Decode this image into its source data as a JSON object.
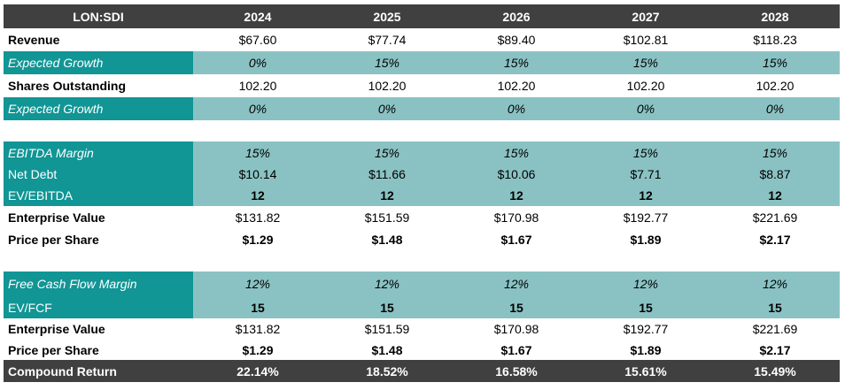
{
  "header": {
    "ticker": "LON:SDI",
    "years": [
      "2024",
      "2025",
      "2026",
      "2027",
      "2028"
    ]
  },
  "rows": {
    "revenue": {
      "label": "Revenue",
      "values": [
        "$67.60",
        "$77.74",
        "$89.40",
        "$102.81",
        "$118.23"
      ]
    },
    "revenue_growth": {
      "label": "Expected Growth",
      "values": [
        "0%",
        "15%",
        "15%",
        "15%",
        "15%"
      ]
    },
    "shares": {
      "label": "Shares Outstanding",
      "values": [
        "102.20",
        "102.20",
        "102.20",
        "102.20",
        "102.20"
      ]
    },
    "shares_growth": {
      "label": "Expected Growth",
      "values": [
        "0%",
        "0%",
        "0%",
        "0%",
        "0%"
      ]
    },
    "ebitda_margin": {
      "label": "EBITDA Margin",
      "values": [
        "15%",
        "15%",
        "15%",
        "15%",
        "15%"
      ]
    },
    "net_debt": {
      "label": "Net Debt",
      "values": [
        "$10.14",
        "$11.66",
        "$10.06",
        "$7.71",
        "$8.87"
      ]
    },
    "ev_ebitda": {
      "label": "EV/EBITDA",
      "values": [
        "12",
        "12",
        "12",
        "12",
        "12"
      ]
    },
    "ev_1": {
      "label": "Enterprise Value",
      "values": [
        "$131.82",
        "$151.59",
        "$170.98",
        "$192.77",
        "$221.69"
      ]
    },
    "pps_1": {
      "label": "Price per Share",
      "values": [
        "$1.29",
        "$1.48",
        "$1.67",
        "$1.89",
        "$2.17"
      ]
    },
    "fcf_margin": {
      "label": "Free Cash Flow Margin",
      "values": [
        "12%",
        "12%",
        "12%",
        "12%",
        "12%"
      ]
    },
    "ev_fcf": {
      "label": "EV/FCF",
      "values": [
        "15",
        "15",
        "15",
        "15",
        "15"
      ]
    },
    "ev_2": {
      "label": "Enterprise Value",
      "values": [
        "$131.82",
        "$151.59",
        "$170.98",
        "$192.77",
        "$221.69"
      ]
    },
    "pps_2": {
      "label": "Price per Share",
      "values": [
        "$1.29",
        "$1.48",
        "$1.67",
        "$1.89",
        "$2.17"
      ]
    },
    "compound_return": {
      "label": "Compound Return",
      "values": [
        "22.14%",
        "18.52%",
        "16.58%",
        "15.61%",
        "15.49%"
      ]
    }
  }
}
